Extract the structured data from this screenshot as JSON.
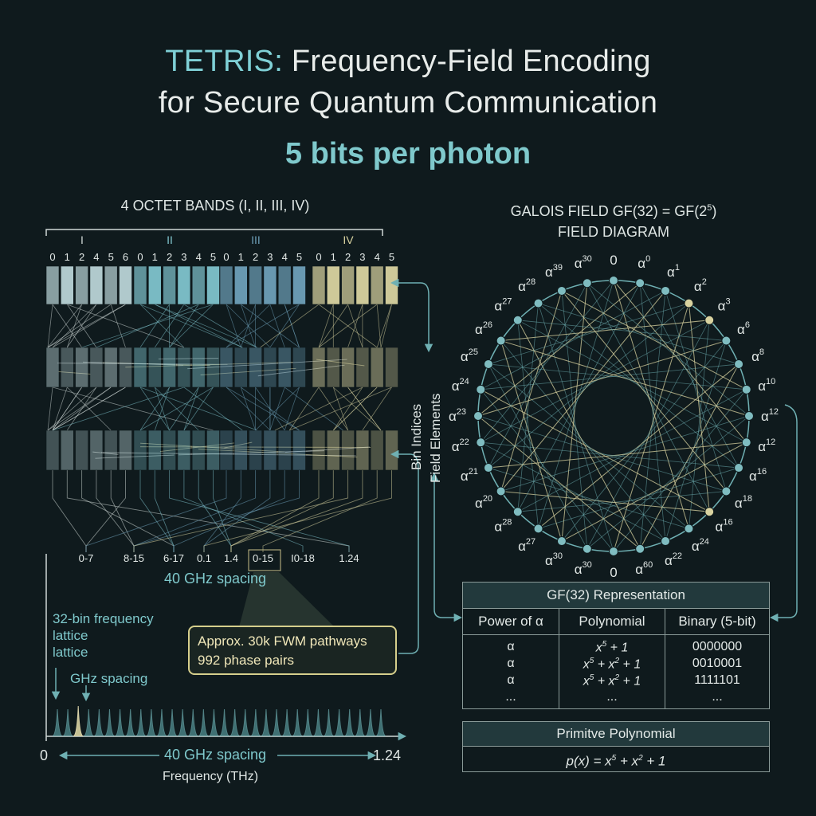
{
  "title": {
    "accent": "TETRIS:",
    "line1_rest": " Frequency-Field Encoding",
    "line2": "for Secure Quantum Communication"
  },
  "subtitle": "5 bits per photon",
  "bands": {
    "header": "4 OCTET BANDS (I, II, III, IV)",
    "names": [
      "I",
      "II",
      "III",
      "IV"
    ],
    "indices": [
      [
        "0",
        "1",
        "2",
        "4",
        "5",
        "6"
      ],
      [
        "0",
        "1",
        "2",
        "3",
        "4",
        "5"
      ],
      [
        "0",
        "1",
        "2",
        "3",
        "4",
        "5"
      ],
      [
        "0",
        "1",
        "2",
        "3",
        "4",
        "5"
      ]
    ],
    "colors": [
      "#b9d3d6",
      "#7fc3cc",
      "#6d9fb8",
      "#d9d3a0"
    ],
    "bottom_labels": [
      "0-7",
      "8-15",
      "6-17",
      "0.1",
      "1.4",
      "0-15",
      "I0-18",
      "1.24"
    ],
    "spacing_label": "40 GHz spacing",
    "side_label_1": "Bin Indices",
    "side_label_2": "Field Elements"
  },
  "lattice": {
    "label_line1": "32-bin frequency",
    "label_line2": "lattice",
    "label_line3": "lattice",
    "ghz_label": "GHz spacing",
    "axis_start": "0",
    "axis_end": "1.24",
    "axis_spacing": "40 GHz spacing",
    "axis_title": "Frequency (THz)",
    "peak_count": 32
  },
  "callout": {
    "line1": "Approx. 30k FWM pathways",
    "line2": "992 phase pairs"
  },
  "field": {
    "header_line1": "GALOIS FIELD GF(32) = GF(2",
    "header_sup": "5",
    "header_close": ")",
    "header_line2": "FIELD DIAGRAM",
    "labels": [
      {
        "b": "0",
        "s": ""
      },
      {
        "b": "α",
        "s": "0"
      },
      {
        "b": "α",
        "s": "1"
      },
      {
        "b": "α",
        "s": "2"
      },
      {
        "b": "α",
        "s": "3"
      },
      {
        "b": "α",
        "s": "6"
      },
      {
        "b": "α",
        "s": "8"
      },
      {
        "b": "α",
        "s": "10"
      },
      {
        "b": "α",
        "s": "12"
      },
      {
        "b": "α",
        "s": "12"
      },
      {
        "b": "α",
        "s": "16"
      },
      {
        "b": "α",
        "s": "18"
      },
      {
        "b": "α",
        "s": "16"
      },
      {
        "b": "α",
        "s": "24"
      },
      {
        "b": "α",
        "s": "22"
      },
      {
        "b": "α",
        "s": "60"
      },
      {
        "b": "0",
        "s": ""
      },
      {
        "b": "α",
        "s": "30"
      },
      {
        "b": "α",
        "s": "30"
      },
      {
        "b": "α",
        "s": "27"
      },
      {
        "b": "α",
        "s": "28"
      },
      {
        "b": "α",
        "s": "20"
      },
      {
        "b": "α",
        "s": "21"
      },
      {
        "b": "α",
        "s": "22"
      },
      {
        "b": "α",
        "s": "23"
      },
      {
        "b": "α",
        "s": "24"
      },
      {
        "b": "α",
        "s": "25"
      },
      {
        "b": "α",
        "s": "26"
      },
      {
        "b": "α",
        "s": "27"
      },
      {
        "b": "α",
        "s": "28"
      },
      {
        "b": "α",
        "s": "39"
      },
      {
        "b": "α",
        "s": "30"
      }
    ]
  },
  "gf_table": {
    "title": "GF(32) Representation",
    "headers": [
      "Power of α",
      "Polynomial",
      "Binary (5-bit)"
    ],
    "rows": [
      {
        "power": "α",
        "poly": [
          {
            "t": "x"
          },
          {
            "s": "5"
          },
          {
            "t": " + 1"
          }
        ],
        "binary": "0000000"
      },
      {
        "power": "α",
        "poly": [
          {
            "t": "x"
          },
          {
            "s": "5"
          },
          {
            "t": " + x"
          },
          {
            "s": "2"
          },
          {
            "t": " + 1"
          }
        ],
        "binary": "0010001"
      },
      {
        "power": "α",
        "poly": [
          {
            "t": "x"
          },
          {
            "s": "5"
          },
          {
            "t": " + x"
          },
          {
            "s": "2"
          },
          {
            "t": " + 1"
          }
        ],
        "binary": "1111101"
      },
      {
        "power": "...",
        "poly": [
          {
            "t": "..."
          }
        ],
        "binary": "..."
      }
    ]
  },
  "primitive": {
    "title": "Primitve Polynomial",
    "formula": [
      {
        "t": "p(x) = x"
      },
      {
        "s": "5"
      },
      {
        "t": " + x"
      },
      {
        "s": "2"
      },
      {
        "t": " + 1"
      }
    ]
  }
}
